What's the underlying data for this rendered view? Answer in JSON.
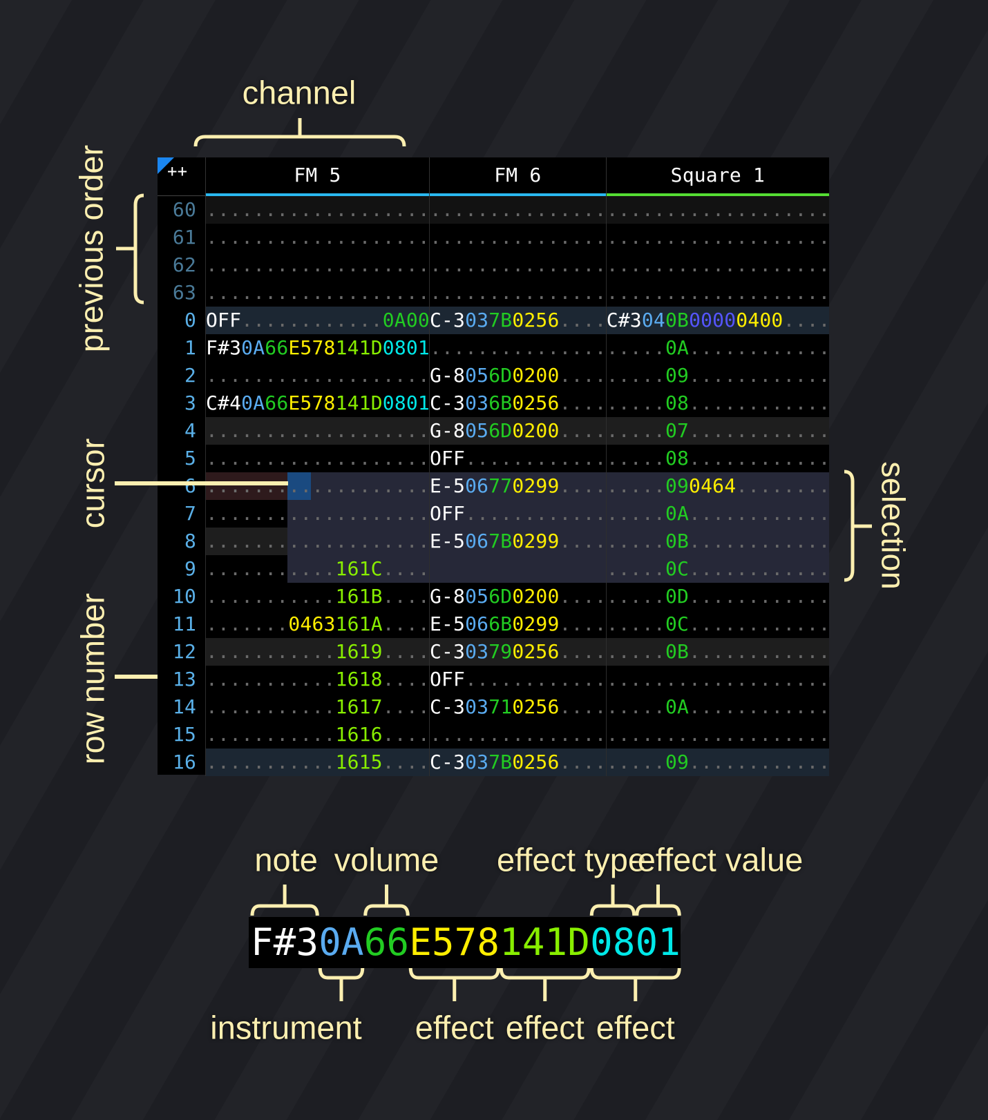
{
  "colors": {
    "w": "#ffffff",
    "i": "#5aabf0",
    "v": "#22cc22",
    "y": "#ffee00",
    "l": "#88ee00",
    "c": "#00e8e8",
    "p": "#5555ff",
    "rownum": "#5ab0e8",
    "rownum_prev": "#4a7a98",
    "bar_row": "#1c2733",
    "beat_row": "#1e1e1e",
    "selection": "#262838",
    "cursor": "#1a4a80",
    "cursor_row": "#2e1a1c",
    "label": "#fcefb0",
    "accent": "#1a86f0"
  },
  "header": {
    "corner_label": "++",
    "channels": [
      {
        "name": "FM 5",
        "color": "#2ab8f0"
      },
      {
        "name": "FM 6",
        "color": "#2ab8f0"
      },
      {
        "name": "Square 1",
        "color": "#55dd33"
      }
    ]
  },
  "annotations": {
    "channel": "channel",
    "previous_order": "previous order",
    "cursor": "cursor",
    "row_number": "row number",
    "selection": "selection"
  },
  "selection": {
    "rows": [
      6,
      9
    ],
    "from_channel": 0,
    "from_column": 7,
    "to_channel": 2
  },
  "cursor": {
    "row": 6,
    "channel": 0,
    "column": 7
  },
  "rows": [
    {
      "num": "60",
      "prev": true,
      "hl": "beat",
      "cells": [
        [
          19
        ],
        [
          15
        ],
        [
          19
        ]
      ]
    },
    {
      "num": "61",
      "prev": true,
      "cells": [
        [
          19
        ],
        [
          15
        ],
        [
          19
        ]
      ]
    },
    {
      "num": "62",
      "prev": true,
      "cells": [
        [
          19
        ],
        [
          15
        ],
        [
          19
        ]
      ]
    },
    {
      "num": "63",
      "prev": true,
      "cells": [
        [
          19
        ],
        [
          15
        ],
        [
          19
        ]
      ]
    },
    {
      "num": "0",
      "hl": "bar",
      "cells": [
        [
          [
            "OFF",
            "w"
          ],
          12,
          [
            "0A00",
            "v"
          ]
        ],
        [
          [
            "C-3",
            "w"
          ],
          [
            "03",
            "i"
          ],
          [
            "7B",
            "v"
          ],
          [
            "0256",
            "y"
          ],
          4
        ],
        [
          [
            "C#3",
            "w"
          ],
          [
            "04",
            "i"
          ],
          [
            "0B",
            "v"
          ],
          [
            "0000",
            "p"
          ],
          [
            "0400",
            "y"
          ],
          4
        ]
      ]
    },
    {
      "num": "1",
      "cells": [
        [
          [
            "F#3",
            "w"
          ],
          [
            "0A",
            "i"
          ],
          [
            "66",
            "v"
          ],
          [
            "E578",
            "y"
          ],
          [
            "141D",
            "l"
          ],
          [
            "0801",
            "c"
          ]
        ],
        [
          15
        ],
        [
          5,
          [
            "0A",
            "v"
          ],
          12
        ]
      ]
    },
    {
      "num": "2",
      "cells": [
        [
          19
        ],
        [
          [
            "G-8",
            "w"
          ],
          [
            "05",
            "i"
          ],
          [
            "6D",
            "v"
          ],
          [
            "0200",
            "y"
          ],
          4
        ],
        [
          5,
          [
            "09",
            "v"
          ],
          12
        ]
      ]
    },
    {
      "num": "3",
      "cells": [
        [
          [
            "C#4",
            "w"
          ],
          [
            "0A",
            "i"
          ],
          [
            "66",
            "v"
          ],
          [
            "E578",
            "y"
          ],
          [
            "141D",
            "l"
          ],
          [
            "0801",
            "c"
          ]
        ],
        [
          [
            "C-3",
            "w"
          ],
          [
            "03",
            "i"
          ],
          [
            "6B",
            "v"
          ],
          [
            "0256",
            "y"
          ],
          4
        ],
        [
          5,
          [
            "08",
            "v"
          ],
          12
        ]
      ]
    },
    {
      "num": "4",
      "hl": "beat",
      "cells": [
        [
          19
        ],
        [
          [
            "G-8",
            "w"
          ],
          [
            "05",
            "i"
          ],
          [
            "6D",
            "v"
          ],
          [
            "0200",
            "y"
          ],
          4
        ],
        [
          5,
          [
            "07",
            "v"
          ],
          12
        ]
      ]
    },
    {
      "num": "5",
      "cells": [
        [
          19
        ],
        [
          [
            "OFF",
            "w"
          ],
          12
        ],
        [
          5,
          [
            "08",
            "v"
          ],
          12
        ]
      ]
    },
    {
      "num": "6",
      "cells": [
        [
          19
        ],
        [
          [
            "E-5",
            "w"
          ],
          [
            "06",
            "i"
          ],
          [
            "77",
            "v"
          ],
          [
            "0299",
            "y"
          ],
          4
        ],
        [
          5,
          [
            "09",
            "v"
          ],
          [
            "0464",
            "y"
          ],
          8
        ]
      ]
    },
    {
      "num": "7",
      "cells": [
        [
          19
        ],
        [
          [
            "OFF",
            "w"
          ],
          12
        ],
        [
          5,
          [
            "0A",
            "v"
          ],
          12
        ]
      ]
    },
    {
      "num": "8",
      "hl": "beat",
      "cells": [
        [
          19
        ],
        [
          [
            "E-5",
            "w"
          ],
          [
            "06",
            "i"
          ],
          [
            "7B",
            "v"
          ],
          [
            "0299",
            "y"
          ],
          4
        ],
        [
          5,
          [
            "0B",
            "v"
          ],
          12
        ]
      ]
    },
    {
      "num": "9",
      "cells": [
        [
          11,
          [
            "161C",
            "l"
          ],
          4
        ],
        [
          -15
        ],
        [
          5,
          [
            "0C",
            "v"
          ],
          12
        ]
      ]
    },
    {
      "num": "10",
      "cells": [
        [
          11,
          [
            "161B",
            "l"
          ],
          4
        ],
        [
          [
            "G-8",
            "w"
          ],
          [
            "05",
            "i"
          ],
          [
            "6D",
            "v"
          ],
          [
            "0200",
            "y"
          ],
          4
        ],
        [
          5,
          [
            "0D",
            "v"
          ],
          12
        ]
      ]
    },
    {
      "num": "11",
      "cells": [
        [
          7,
          [
            "0463",
            "y"
          ],
          [
            "161A",
            "l"
          ],
          4
        ],
        [
          [
            "E-5",
            "w"
          ],
          [
            "06",
            "i"
          ],
          [
            "6B",
            "v"
          ],
          [
            "0299",
            "y"
          ],
          4
        ],
        [
          5,
          [
            "0C",
            "v"
          ],
          12
        ]
      ]
    },
    {
      "num": "12",
      "hl": "beat",
      "cells": [
        [
          11,
          [
            "1619",
            "l"
          ],
          4
        ],
        [
          [
            "C-3",
            "w"
          ],
          [
            "03",
            "i"
          ],
          [
            "79",
            "v"
          ],
          [
            "0256",
            "y"
          ],
          4
        ],
        [
          5,
          [
            "0B",
            "v"
          ],
          12
        ]
      ]
    },
    {
      "num": "13",
      "cells": [
        [
          11,
          [
            "1618",
            "l"
          ],
          4
        ],
        [
          [
            "OFF",
            "w"
          ],
          12
        ],
        [
          19
        ]
      ]
    },
    {
      "num": "14",
      "cells": [
        [
          11,
          [
            "1617",
            "l"
          ],
          4
        ],
        [
          [
            "C-3",
            "w"
          ],
          [
            "03",
            "i"
          ],
          [
            "71",
            "v"
          ],
          [
            "0256",
            "y"
          ],
          4
        ],
        [
          5,
          [
            "0A",
            "v"
          ],
          12
        ]
      ]
    },
    {
      "num": "15",
      "cells": [
        [
          11,
          [
            "1616",
            "l"
          ],
          4
        ],
        [
          15
        ],
        [
          19
        ]
      ]
    },
    {
      "num": "16",
      "hl": "bar",
      "cells": [
        [
          11,
          [
            "1615",
            "l"
          ],
          4
        ],
        [
          [
            "C-3",
            "w"
          ],
          [
            "03",
            "i"
          ],
          [
            "7B",
            "v"
          ],
          [
            "0256",
            "y"
          ],
          4
        ],
        [
          5,
          [
            "09",
            "v"
          ],
          12
        ]
      ]
    }
  ],
  "legend": {
    "example": [
      [
        "F#3",
        "w"
      ],
      [
        "0A",
        "i"
      ],
      [
        "66",
        "v"
      ],
      [
        "E578",
        "y"
      ],
      [
        "141D",
        "l"
      ],
      [
        "0801",
        "c"
      ]
    ],
    "fields": [
      {
        "label": "note",
        "side": "top",
        "chars": [
          0,
          2
        ]
      },
      {
        "label": "volume",
        "side": "top",
        "chars": [
          5,
          6
        ]
      },
      {
        "label": "effect type",
        "side": "top",
        "chars": [
          15,
          16
        ]
      },
      {
        "label": "effect value",
        "side": "top",
        "chars": [
          17,
          18
        ]
      },
      {
        "label": "instrument",
        "side": "bottom",
        "chars": [
          3,
          4
        ]
      },
      {
        "label": "effect",
        "side": "bottom",
        "chars": [
          7,
          10
        ]
      },
      {
        "label": "effect",
        "side": "bottom",
        "chars": [
          11,
          14
        ]
      },
      {
        "label": "effect",
        "side": "bottom",
        "chars": [
          15,
          18
        ]
      }
    ]
  }
}
